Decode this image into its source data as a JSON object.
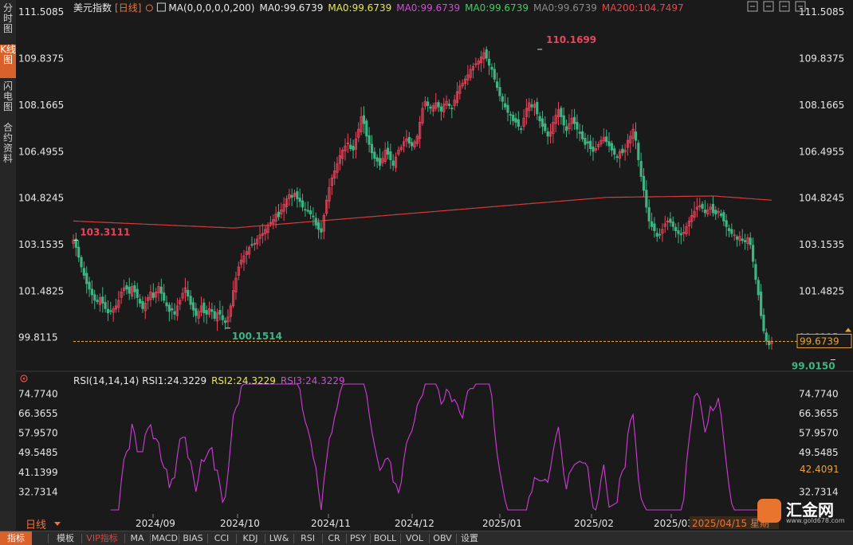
{
  "sidebar": {
    "tabs": [
      "分时图",
      "K线图",
      "闪电图",
      "合约资料"
    ],
    "active": 1
  },
  "header": {
    "instrument": "美元指数",
    "period": "[日线]",
    "add_icon": "plus-circle-icon",
    "ma_icon": "ma-settings-icon",
    "ma_params": "MA(0,0,0,0,0,200)",
    "items": [
      {
        "text": "MA0:99.6739",
        "color": "#e8e8e8"
      },
      {
        "text": "MA0:99.6739",
        "color": "#e8e84a"
      },
      {
        "text": "MA0:99.6739",
        "color": "#d24ad8"
      },
      {
        "text": "MA0:99.6739",
        "color": "#3fcf5a"
      },
      {
        "text": "MA0:99.6739",
        "color": "#8a8a8a"
      },
      {
        "text": "MA200:104.7497",
        "color": "#e84848"
      }
    ],
    "window_icons": [
      "crosshair-icon",
      "collapse-icon",
      "help-icon",
      "close-icon"
    ]
  },
  "rsi": {
    "params": "RSI(14,14,14)",
    "items": [
      {
        "text": "RSI1:24.3229",
        "color": "#e8e8e8"
      },
      {
        "text": "RSI2:24.3229",
        "color": "#e8e84a"
      },
      {
        "text": "RSI3:24.3229",
        "color": "#d24ad8"
      }
    ],
    "tag": "42.4091"
  },
  "xaxis": {
    "period_label": "日线",
    "crosshair_label": "2025/04/15 星期"
  },
  "bottom_tabs": [
    "指标",
    "模板",
    "VIP指标",
    "MA",
    "MACD",
    "BIAS",
    "CCI",
    "KDJ",
    "LW&",
    "RSI",
    "CR",
    "PSY",
    "BOLL",
    "VOL",
    "OBV",
    "设置"
  ],
  "logo": {
    "name": "汇金网",
    "url": "www.gold678.com"
  },
  "colors": {
    "up": "#e8455c",
    "down": "#3fb483",
    "ma200": "#d83a3a",
    "rsi": "#d03dd6",
    "price_line": "#e8a23a",
    "background": "#1a1a1a",
    "accent": "#d9612b"
  },
  "chart_data": [
    {
      "type": "candlestick",
      "title": "美元指数",
      "ylim": [
        99.0,
        111.6
      ],
      "yticks": [
        111.5085,
        109.8375,
        108.1665,
        106.4955,
        104.8245,
        103.1535,
        101.4825,
        99.8115
      ],
      "ytick_labels": [
        "111.5085",
        "109.8375",
        "108.1665",
        "106.4955",
        "104.8245",
        "103.1535",
        "101.4825",
        "99.8115"
      ],
      "current_price": 99.6739,
      "current_price_label": "99.6739",
      "x_labels": [
        "2024/09",
        "2024/10",
        "2024/11",
        "2024/12",
        "2025/01",
        "2025/02",
        "2025/03"
      ],
      "annotations": [
        {
          "label": "103.3111",
          "value": 103.3111,
          "index": 1
        },
        {
          "label": "100.1514",
          "value": 100.1514,
          "index": 58
        },
        {
          "label": "110.1699",
          "value": 110.1699,
          "index": 175
        },
        {
          "label": "99.0150",
          "value": 99.015,
          "index": 285
        }
      ],
      "closes": [
        103.3,
        103.05,
        102.7,
        102.35,
        102.05,
        101.75,
        101.55,
        101.35,
        101.15,
        101.1,
        101.25,
        101.05,
        100.85,
        100.7,
        100.75,
        100.85,
        100.95,
        101.15,
        101.45,
        101.6,
        101.55,
        101.4,
        101.65,
        101.45,
        101.25,
        101.05,
        100.85,
        101.05,
        101.25,
        101.45,
        101.25,
        101.45,
        101.65,
        101.4,
        101.15,
        100.95,
        100.75,
        100.8,
        100.65,
        100.95,
        101.15,
        101.4,
        101.6,
        101.3,
        101.0,
        100.8,
        100.6,
        100.75,
        100.95,
        100.7,
        100.65,
        100.85,
        100.75,
        100.5,
        100.7,
        100.65,
        100.45,
        100.35,
        100.55,
        100.95,
        101.5,
        101.95,
        102.35,
        102.6,
        102.75,
        102.9,
        103.05,
        103.15,
        103.2,
        103.35,
        103.5,
        103.55,
        103.7,
        103.85,
        103.95,
        104.05,
        104.25,
        104.15,
        104.4,
        104.6,
        104.8,
        104.95,
        104.85,
        105.0,
        104.8,
        104.7,
        104.5,
        104.4,
        104.35,
        104.25,
        104.15,
        103.85,
        103.7,
        103.6,
        104.2,
        104.75,
        105.2,
        105.55,
        105.8,
        106.05,
        106.35,
        106.55,
        106.7,
        106.8,
        106.6,
        106.55,
        106.95,
        107.3,
        107.75,
        107.5,
        107.05,
        106.75,
        106.45,
        106.25,
        106.15,
        106.0,
        106.25,
        106.55,
        106.4,
        106.2,
        106.0,
        106.3,
        106.55,
        106.65,
        106.85,
        106.95,
        106.8,
        106.7,
        106.85,
        107.05,
        107.55,
        108.05,
        108.3,
        108.15,
        108.05,
        108.15,
        108.25,
        108.1,
        107.95,
        108.2,
        108.3,
        108.15,
        108.05,
        108.35,
        108.65,
        108.85,
        108.95,
        109.1,
        109.25,
        109.45,
        109.55,
        109.65,
        109.75,
        109.9,
        110.05,
        109.85,
        109.6,
        109.45,
        109.1,
        108.8,
        108.5,
        108.3,
        108.1,
        107.9,
        107.8,
        107.6,
        107.55,
        107.4,
        107.3,
        107.7,
        108.05,
        108.25,
        108.1,
        108.2,
        107.85,
        107.6,
        107.4,
        107.25,
        107.05,
        107.2,
        107.55,
        107.8,
        108.0,
        107.75,
        107.45,
        107.25,
        107.5,
        107.7,
        107.5,
        107.3,
        107.15,
        106.95,
        106.75,
        106.8,
        106.6,
        106.5,
        106.6,
        106.75,
        106.9,
        107.0,
        106.85,
        106.7,
        106.55,
        106.4,
        106.3,
        106.5,
        106.45,
        106.55,
        106.9,
        107.05,
        107.3,
        106.9,
        106.2,
        105.6,
        105.1,
        104.5,
        104.0,
        103.8,
        103.65,
        103.45,
        103.5,
        103.7,
        103.9,
        104.0,
        103.95,
        103.8,
        103.65,
        103.55,
        103.5,
        103.6,
        103.8,
        104.0,
        104.2,
        104.35,
        104.5,
        104.55,
        104.45,
        104.3,
        104.4,
        104.5,
        104.3,
        104.25,
        104.35,
        104.2,
        104.0,
        103.8,
        103.65,
        103.55,
        103.5,
        103.35,
        103.45,
        103.3,
        103.25,
        103.4,
        103.15,
        102.55,
        101.9,
        101.35,
        100.6,
        100.05,
        99.7,
        99.55,
        99.67
      ],
      "rsi_ticks": [
        74.774,
        66.3655,
        57.957,
        49.5485,
        41.1399,
        32.7314
      ],
      "rsi_tick_labels": [
        "74.7740",
        "66.3655",
        "57.9570",
        "49.5485",
        "41.1399",
        "32.7314"
      ],
      "rsi_ylim": [
        25,
        79
      ]
    }
  ]
}
